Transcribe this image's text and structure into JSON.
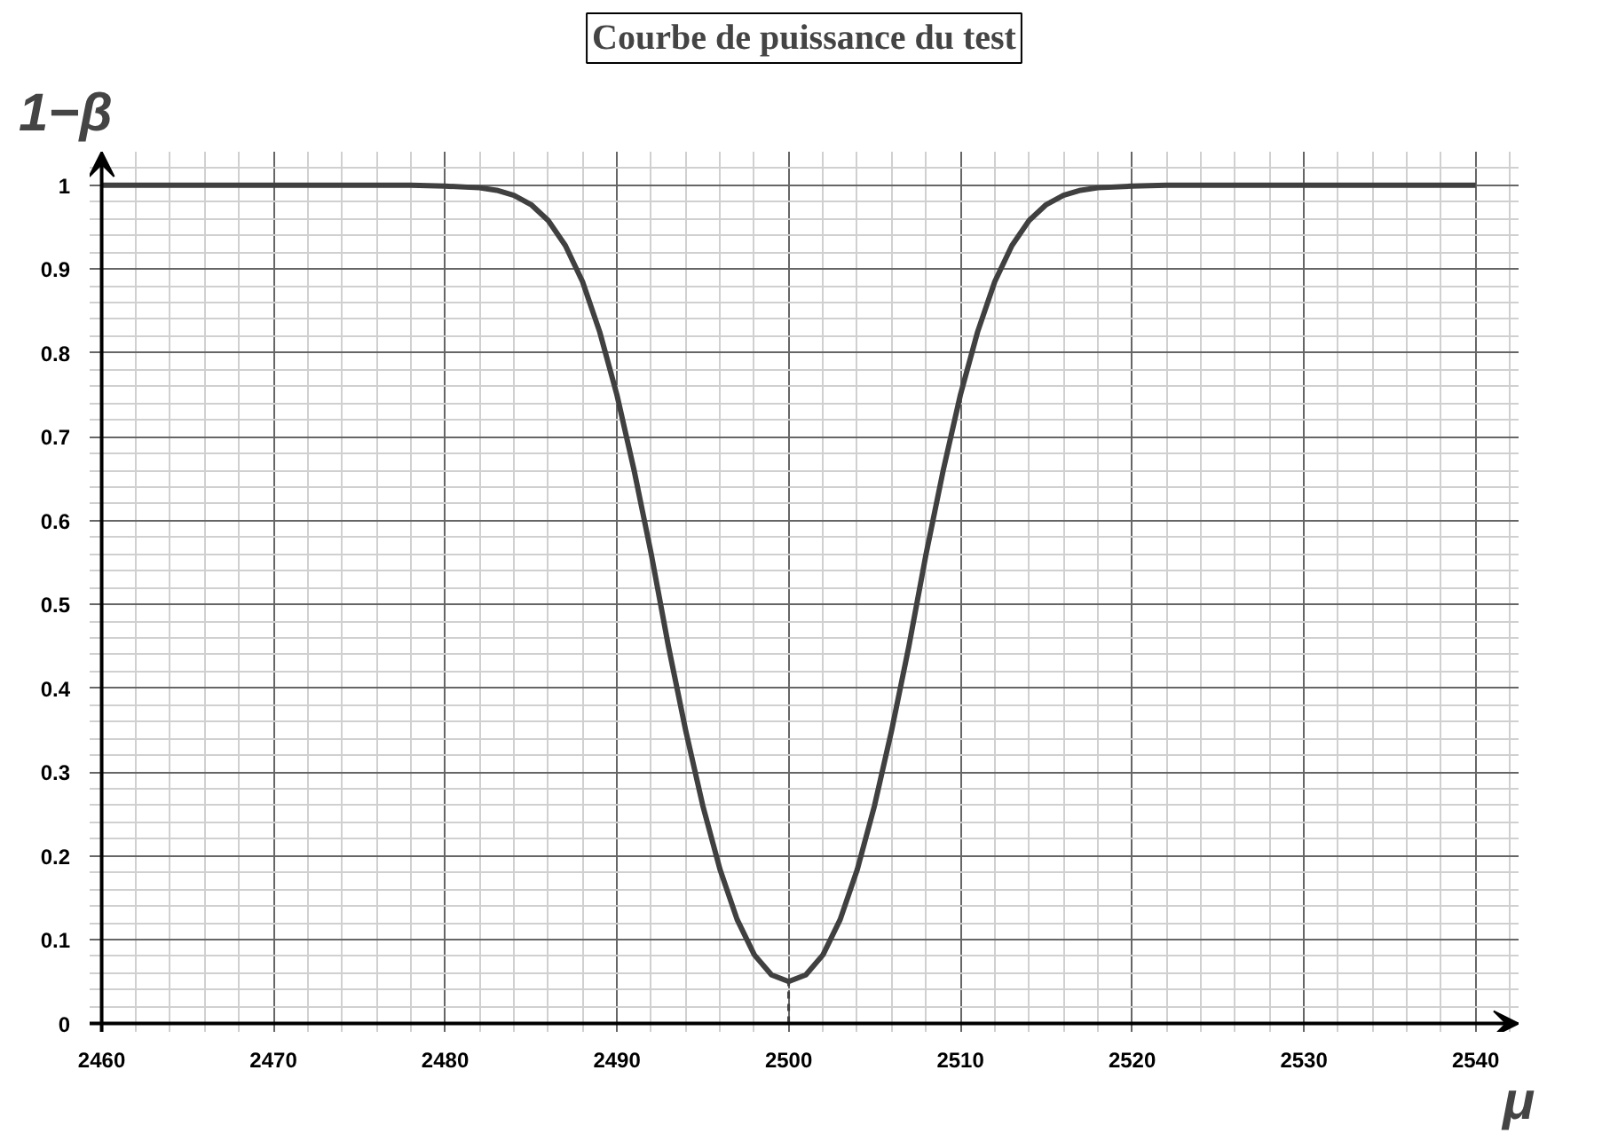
{
  "chart_data": {
    "type": "line",
    "title": "Courbe de puissance du test",
    "xlabel": "μ",
    "ylabel": "1−β",
    "xlim": [
      2459.3,
      2542.5
    ],
    "ylim": [
      -0.01,
      1.04
    ],
    "xticks": [
      2460,
      2470,
      2480,
      2490,
      2500,
      2510,
      2520,
      2530,
      2540
    ],
    "yticks": [
      0,
      0.1,
      0.2,
      0.3,
      0.4,
      0.5,
      0.6,
      0.7,
      0.8,
      0.9,
      1
    ],
    "grid": true,
    "marker": "none",
    "series": [
      {
        "color": "#404040",
        "line_style": "solid",
        "x": [
          2460,
          2470,
          2476,
          2478,
          2480,
          2482,
          2483,
          2484,
          2485,
          2486,
          2487,
          2488,
          2489,
          2490,
          2491,
          2492,
          2493,
          2494,
          2495,
          2496,
          2497,
          2498,
          2499,
          2500,
          2501,
          2502,
          2503,
          2504,
          2505,
          2506,
          2507,
          2508,
          2509,
          2510,
          2511,
          2512,
          2513,
          2514,
          2515,
          2516,
          2517,
          2518,
          2520,
          2522,
          2524,
          2530,
          2540
        ],
        "values": [
          1,
          1,
          1,
          1,
          0.999,
          0.997,
          0.994,
          0.988,
          0.977,
          0.958,
          0.928,
          0.885,
          0.825,
          0.75,
          0.66,
          0.56,
          0.45,
          0.35,
          0.26,
          0.184,
          0.124,
          0.082,
          0.058,
          0.05,
          0.058,
          0.082,
          0.124,
          0.184,
          0.26,
          0.35,
          0.45,
          0.56,
          0.66,
          0.75,
          0.825,
          0.885,
          0.928,
          0.958,
          0.977,
          0.988,
          0.994,
          0.997,
          0.999,
          1,
          1,
          1,
          1
        ]
      },
      {
        "color": "#404040",
        "line_style": "dashed",
        "x": [
          2500,
          2500
        ],
        "values": [
          0,
          0.05
        ]
      }
    ]
  }
}
